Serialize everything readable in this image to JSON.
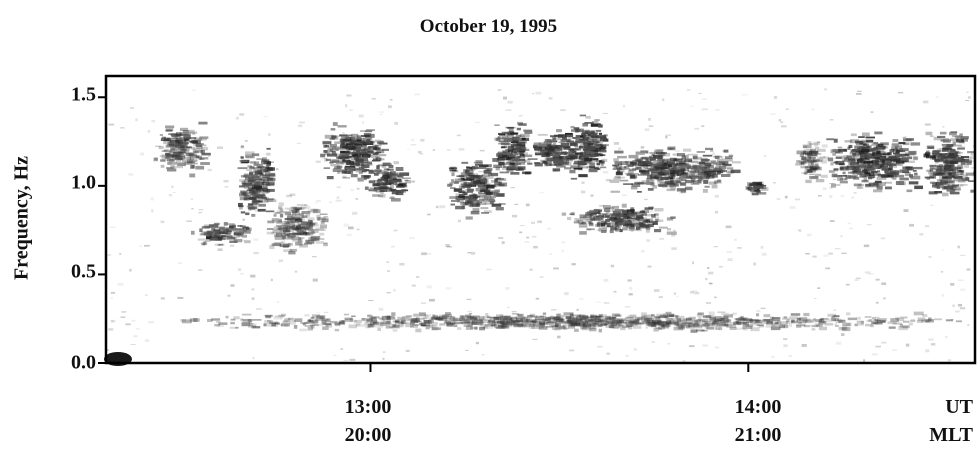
{
  "chart_data": {
    "type": "heatmap",
    "title": "October 19, 1995",
    "ylabel": "Frequency, Hz",
    "ylim": [
      0,
      1.62
    ],
    "yticks": [
      "0.0",
      "0.5",
      "1.0",
      "1.5"
    ],
    "ytick_values": [
      0.0,
      0.5,
      1.0,
      1.5
    ],
    "xlim_ut_hours": [
      12.3,
      14.6
    ],
    "xticks": [
      {
        "ut": "13:00",
        "mlt": "20:00",
        "ut_hours": 13.0
      },
      {
        "ut": "14:00",
        "mlt": "21:00",
        "ut_hours": 14.0
      }
    ],
    "xaxis_units": [
      "UT",
      "MLT"
    ],
    "colormap": "grayscale (white = low power, black = high power)",
    "features": [
      {
        "t_start": 12.42,
        "t_end": 12.56,
        "f_low": 1.05,
        "f_high": 1.38,
        "intensity": 0.6
      },
      {
        "t_start": 12.52,
        "t_end": 12.68,
        "f_low": 0.65,
        "f_high": 0.82,
        "intensity": 0.7
      },
      {
        "t_start": 12.64,
        "t_end": 12.74,
        "f_low": 0.78,
        "f_high": 1.25,
        "intensity": 0.75
      },
      {
        "t_start": 12.72,
        "t_end": 12.88,
        "f_low": 0.6,
        "f_high": 0.95,
        "intensity": 0.5
      },
      {
        "t_start": 12.86,
        "t_end": 13.04,
        "f_low": 1.0,
        "f_high": 1.38,
        "intensity": 0.85
      },
      {
        "t_start": 12.98,
        "t_end": 13.1,
        "f_low": 0.9,
        "f_high": 1.15,
        "intensity": 0.8
      },
      {
        "t_start": 13.2,
        "t_end": 13.35,
        "f_low": 0.8,
        "f_high": 1.2,
        "intensity": 0.8
      },
      {
        "t_start": 13.32,
        "t_end": 13.42,
        "f_low": 1.0,
        "f_high": 1.4,
        "intensity": 0.85
      },
      {
        "t_start": 13.42,
        "t_end": 13.55,
        "f_low": 1.05,
        "f_high": 1.35,
        "intensity": 0.85
      },
      {
        "t_start": 13.52,
        "t_end": 13.62,
        "f_low": 1.0,
        "f_high": 1.45,
        "intensity": 0.95
      },
      {
        "t_start": 13.5,
        "t_end": 13.8,
        "f_low": 0.72,
        "f_high": 0.92,
        "intensity": 0.7
      },
      {
        "t_start": 13.6,
        "t_end": 13.98,
        "f_low": 0.95,
        "f_high": 1.25,
        "intensity": 0.7
      },
      {
        "t_start": 13.98,
        "t_end": 14.04,
        "f_low": 0.95,
        "f_high": 1.05,
        "intensity": 0.95
      },
      {
        "t_start": 14.12,
        "t_end": 14.2,
        "f_low": 1.0,
        "f_high": 1.3,
        "intensity": 0.45
      },
      {
        "t_start": 14.2,
        "t_end": 14.45,
        "f_low": 0.95,
        "f_high": 1.35,
        "intensity": 0.8
      },
      {
        "t_start": 14.45,
        "t_end": 14.6,
        "f_low": 0.9,
        "f_high": 1.35,
        "intensity": 0.75
      },
      {
        "t_start": 12.45,
        "t_end": 14.6,
        "f_low": 0.18,
        "f_high": 0.3,
        "intensity": 0.45
      }
    ],
    "grid": false,
    "legend": "none"
  }
}
